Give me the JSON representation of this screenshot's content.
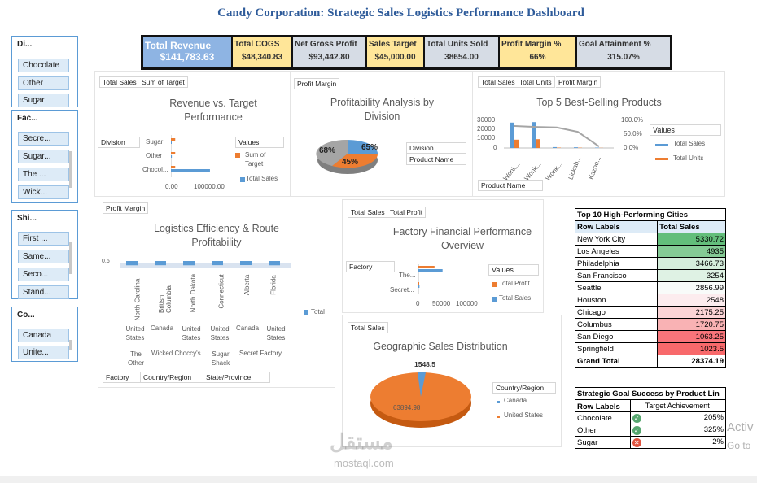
{
  "page_title": "Candy Corporation: Strategic Sales Logistics Performance Dashboard",
  "slicers": [
    {
      "header": "Di...",
      "items": [
        "Chocolate",
        "Other",
        "Sugar"
      ]
    },
    {
      "header": "Fac...",
      "items": [
        "Secre...",
        "Sugar...",
        "The ...",
        "Wick..."
      ]
    },
    {
      "header": "Shi...",
      "items": [
        "First ...",
        "Same...",
        "Seco...",
        "Stand..."
      ]
    },
    {
      "header": "Co...",
      "items": [
        "Canada",
        "Unite..."
      ]
    }
  ],
  "kpis": [
    {
      "label": "Total Revenue",
      "value": "$141,783.63",
      "bg": "#8eb4e3"
    },
    {
      "label": "Total COGS",
      "value": "$48,340.83",
      "bg": "#ffe699"
    },
    {
      "label": "Net Gross Profit",
      "value": "$93,442.80",
      "bg": "#d6dce5"
    },
    {
      "label": "Sales Target",
      "value": "$45,000.00",
      "bg": "#ffe699"
    },
    {
      "label": "Total Units Sold",
      "value": "38654.00",
      "bg": "#d6dce5"
    },
    {
      "label": "Profit Margin %",
      "value": "66%",
      "bg": "#ffe699"
    },
    {
      "label": "Goal Attainment %",
      "value": "315.07%",
      "bg": "#d6dce5"
    }
  ],
  "colors": {
    "blue": "#5b9bd5",
    "orange": "#ed7d31",
    "gray": "#a5a5a5",
    "title": "#2e5b9a"
  },
  "revenue_chart": {
    "field_buttons": [
      "Total Sales",
      "Sum of Target"
    ],
    "title_line1": "Revenue vs. Target",
    "title_line2": "Performance",
    "axis_field": "Division",
    "legend_title": "Values",
    "legend": [
      "Sum of Target",
      "Total Sales"
    ],
    "chart_data": {
      "type": "bar",
      "categories": [
        "Sugar",
        "Other",
        "Chocol..."
      ],
      "series": [
        {
          "name": "Sum of Target",
          "values": [
            15000,
            15000,
            15000
          ]
        },
        {
          "name": "Total Sales",
          "values": [
            1200,
            3200,
            137000
          ]
        }
      ],
      "x_ticks": [
        "0.00",
        "100000.00"
      ],
      "xlim": [
        0,
        200000
      ]
    }
  },
  "profit_pie": {
    "field_button": "Profit Margin",
    "title_line1": "Profitability Analysis by",
    "title_line2": "Division",
    "filter_buttons": [
      "Division",
      "Product Name"
    ],
    "chart_data": {
      "type": "pie",
      "labels": [
        "65%",
        "45%",
        "68%"
      ],
      "values": [
        65,
        45,
        68
      ],
      "colors": [
        "#5b9bd5",
        "#ed7d31",
        "#a5a5a5"
      ]
    }
  },
  "top5_chart": {
    "field_buttons": [
      "Total Sales",
      "Total Units",
      "Profit Margin"
    ],
    "title": "Top 5 Best-Selling Products",
    "axis_field": "Product Name",
    "legend_title": "Values",
    "legend": [
      "Total Sales",
      "Total Units"
    ],
    "chart_data": {
      "type": "bar",
      "categories": [
        "Wonk...",
        "Wonk...",
        "Wonk...",
        "Lickab...",
        "Kazoo..."
      ],
      "series": [
        {
          "name": "Total Sales",
          "values": [
            26000,
            26500,
            900,
            700,
            400
          ]
        },
        {
          "name": "Total Units",
          "values": [
            8500,
            9000,
            400,
            300,
            150
          ]
        }
      ],
      "line": {
        "name": "Profit Margin",
        "values": [
          0.75,
          0.72,
          0.7,
          0.55,
          0.05
        ]
      },
      "y_ticks": [
        "30000",
        "20000",
        "10000",
        "0"
      ],
      "y2_ticks": [
        "100.0%",
        "50.0%",
        "0.0%"
      ],
      "ylim": [
        0,
        30000
      ]
    }
  },
  "logistics_chart": {
    "field_button": "Profit Margin",
    "title_line1": "Logistics Efficiency & Route",
    "title_line2": "Profitability",
    "y_label": "0.6",
    "legend": [
      "Total"
    ],
    "chart_data": {
      "type": "bar",
      "categories": [
        "North Carolina",
        "British Columbia",
        "North Dakota",
        "Connecticut",
        "Alberta",
        "Florida"
      ],
      "series": [
        {
          "name": "Total",
          "values": [
            0.66,
            0.65,
            0.66,
            0.64,
            0.63,
            0.66
          ]
        }
      ]
    },
    "country_labels": [
      "United States",
      "Canada",
      "United States",
      "United States",
      "Canada",
      "United States"
    ],
    "factory_labels": [
      "The Other Factory",
      "Wicked Choccy's",
      "Sugar Shack",
      "Secret Factory"
    ],
    "bottom_buttons": [
      "Factory",
      "Country/Region",
      "State/Province"
    ]
  },
  "factory_chart": {
    "field_buttons": [
      "Total Sales",
      "Total Profit"
    ],
    "title_line1": "Factory Financial Performance",
    "title_line2": "Overview",
    "axis_field": "Factory",
    "legend_title": "Values",
    "legend": [
      "Total Profit",
      "Total Sales"
    ],
    "chart_data": {
      "type": "bar",
      "categories": [
        "The...",
        "Secret..."
      ],
      "series": [
        {
          "name": "Total Profit",
          "values": [
            22000,
            900
          ]
        },
        {
          "name": "Total Sales",
          "values": [
            33000,
            1500
          ]
        }
      ],
      "x_ticks": [
        "0",
        "50000",
        "100000"
      ],
      "xlim": [
        0,
        100000
      ]
    }
  },
  "geo_chart": {
    "field_button": "Total Sales",
    "title": "Geographic Sales Distribution",
    "legend_title": "Country/Region",
    "legend": [
      "Canada",
      "United States"
    ],
    "chart_data": {
      "type": "pie",
      "labels": [
        "Canada",
        "United States"
      ],
      "values": [
        1548.5,
        63894.98
      ],
      "data_labels": [
        "1548.5",
        "63894.98"
      ],
      "colors": [
        "#5b9bd5",
        "#ed7d31"
      ]
    }
  },
  "cities_table": {
    "title": "Top 10 High-Performing Cities",
    "headers": [
      "Row Labels",
      "Total Sales"
    ],
    "rows": [
      {
        "city": "New York City",
        "value": "5330.72",
        "color": "#63be7b"
      },
      {
        "city": "Los Angeles",
        "value": "4935",
        "color": "#84cb95"
      },
      {
        "city": "Philadelphia",
        "value": "3466.73",
        "color": "#d5eedc"
      },
      {
        "city": "San Francisco",
        "value": "3254",
        "color": "#dff2e4"
      },
      {
        "city": "Seattle",
        "value": "2856.99",
        "color": "#f8fbf9"
      },
      {
        "city": "Houston",
        "value": "2548",
        "color": "#fcecee"
      },
      {
        "city": "Chicago",
        "value": "2175.25",
        "color": "#fbd4d6"
      },
      {
        "city": "Columbus",
        "value": "1720.75",
        "color": "#f9b2b4"
      },
      {
        "city": "San Diego",
        "value": "1063.25",
        "color": "#f8747a"
      },
      {
        "city": "Springfield",
        "value": "1023.5",
        "color": "#f8696b"
      }
    ],
    "grand_total_label": "Grand Total",
    "grand_total": "28374.19"
  },
  "goal_table": {
    "title": "Strategic Goal Success by Product Lin",
    "row_label_header": "Row Labels",
    "value_header": "Target Achievement",
    "rows": [
      {
        "label": "Chocolate",
        "value": "205%",
        "status": "ok"
      },
      {
        "label": "Other",
        "value": "325%",
        "status": "ok"
      },
      {
        "label": "Sugar",
        "value": "2%",
        "status": "bad"
      }
    ]
  },
  "watermark": {
    "arabic": "مستقل",
    "latin": "mostaql.com"
  },
  "activation": {
    "line1": "Activ",
    "line2": "Go to"
  }
}
